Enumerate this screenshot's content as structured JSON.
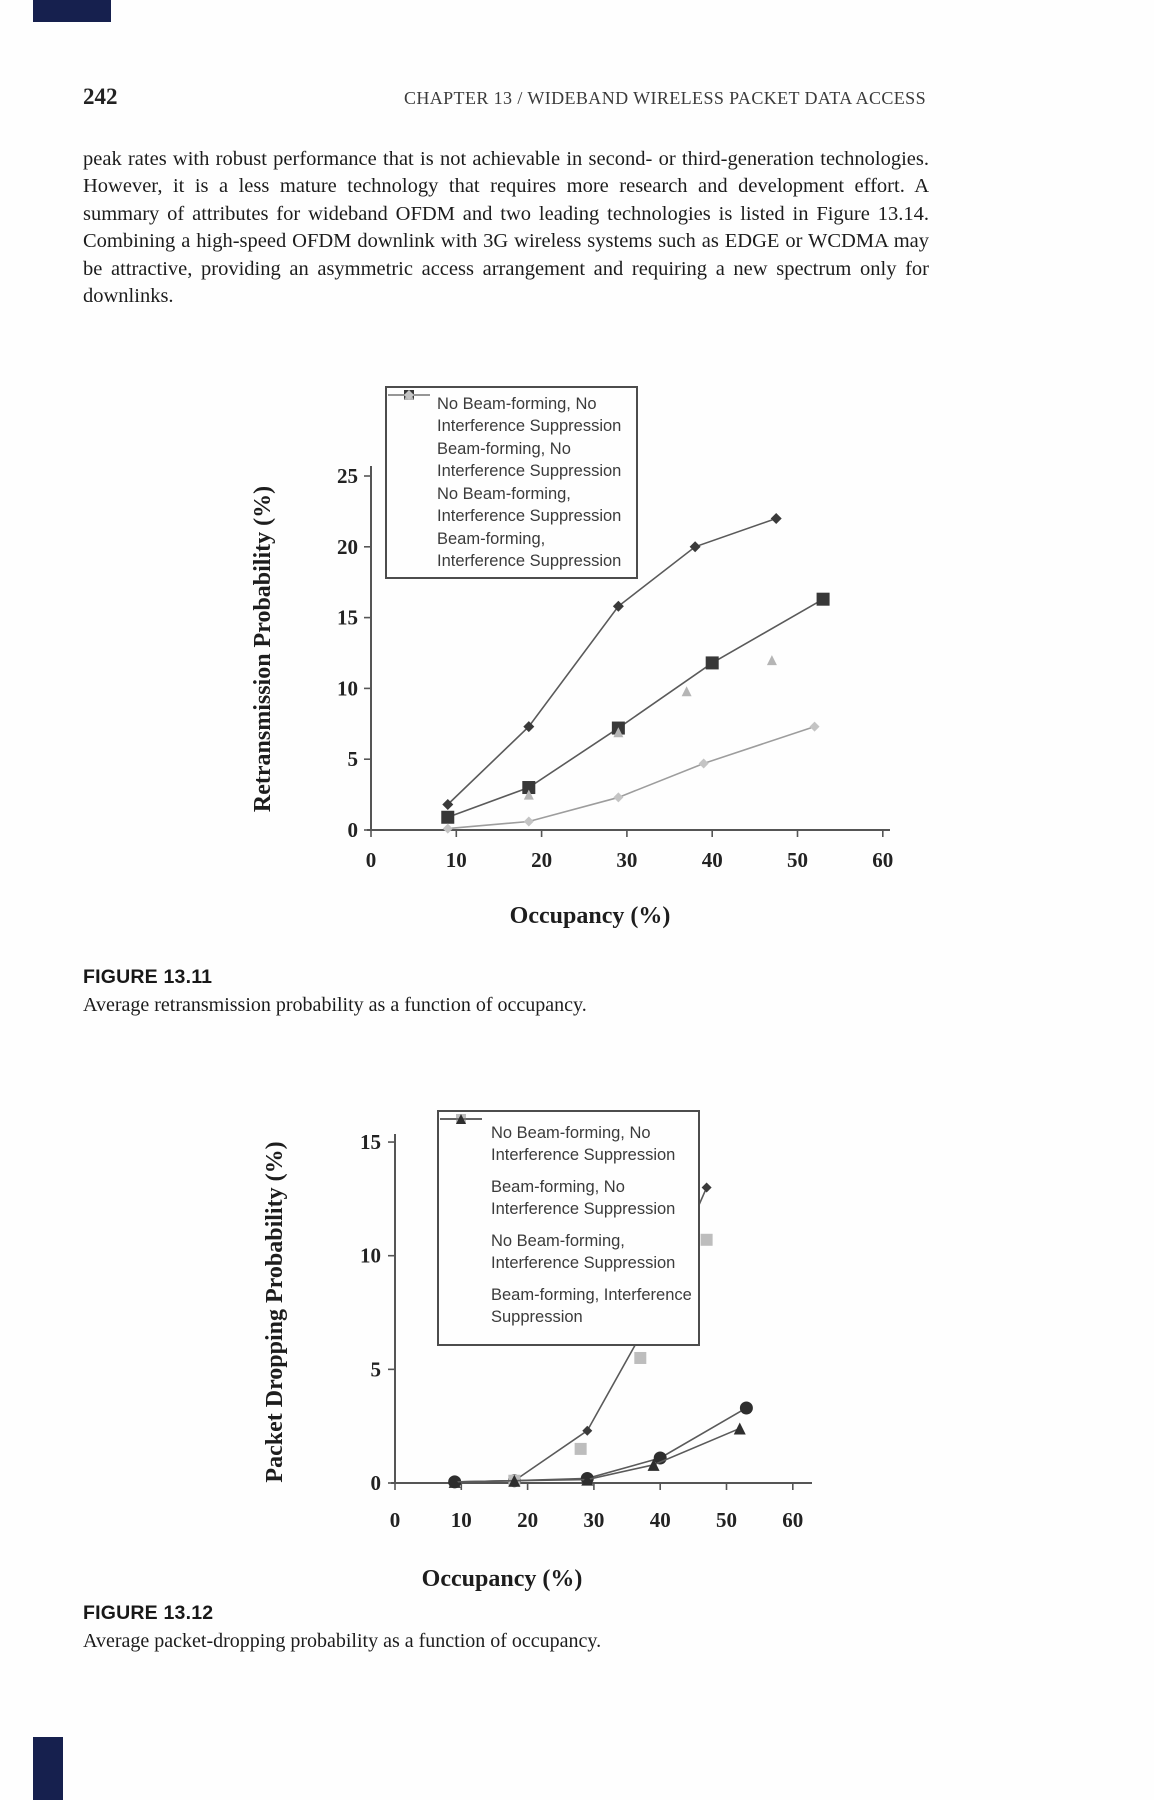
{
  "page": {
    "number": "242",
    "running_head": "CHAPTER 13 / WIDEBAND WIRELESS PACKET DATA ACCESS",
    "paragraph": "peak rates with robust performance that is not achievable in second- or third-generation technologies. However, it is a less mature technology that requires more research and development effort. A summary of attributes for wideband OFDM and two leading technologies is listed in Figure 13.14. Combining a high-speed OFDM downlink with 3G wireless systems such as EDGE or WCDMA may be attractive, providing an asymmetric access arrangement and requiring a new spectrum only for downlinks."
  },
  "figure1": {
    "label": "FIGURE 13.11",
    "caption": "Average retransmission probability as a function of occupancy."
  },
  "figure2": {
    "label": "FIGURE 13.12",
    "caption": "Average packet-dropping probability as a function of occupancy."
  },
  "colors": {
    "ink": "#1d1d1d",
    "chart_line": "#5a5a5a",
    "dark_marker": "#383838",
    "light_marker": "#bfbfbf",
    "legend_border": "#4c4c4c",
    "scan_artifact": "#16204e"
  },
  "chart_data": [
    {
      "type": "line",
      "title": "",
      "xlabel": "Occupancy (%)",
      "ylabel": "Retransmission Probability (%)",
      "xlim": [
        0,
        60
      ],
      "ylim": [
        0,
        25
      ],
      "xticks": [
        0,
        10,
        20,
        30,
        40,
        50,
        60
      ],
      "yticks": [
        0,
        5,
        10,
        15,
        20,
        25
      ],
      "grid": false,
      "legend_position": "top-left-inside",
      "series": [
        {
          "name": "No Beam-forming, No Interference Suppression",
          "marker": "diamond",
          "marker_color": "#3a3a3a",
          "line": true,
          "line_color": "#5a5a5a",
          "x": [
            9,
            18.5,
            29,
            38,
            47.5
          ],
          "y": [
            1.8,
            7.3,
            15.8,
            20.0,
            22.0
          ]
        },
        {
          "name": "Beam-forming, No Interference Suppression",
          "marker": "square",
          "marker_color": "#383838",
          "line": true,
          "line_color": "#5a5a5a",
          "x": [
            9,
            18.5,
            29,
            40,
            53
          ],
          "y": [
            0.9,
            3.0,
            7.2,
            11.8,
            16.3
          ]
        },
        {
          "name": "No Beam-forming, Interference Suppression",
          "marker": "triangle",
          "marker_color": "#b5b5b5",
          "line": false,
          "line_color": "#b5b5b5",
          "x": [
            18.5,
            29,
            37,
            47
          ],
          "y": [
            2.5,
            6.9,
            9.8,
            12.0
          ]
        },
        {
          "name": "Beam-forming, Interference Suppression",
          "marker": "diamond",
          "marker_color": "#c4c4c4",
          "line": true,
          "line_color": "#9d9d9d",
          "x": [
            9,
            18.5,
            29,
            39,
            52
          ],
          "y": [
            0.1,
            0.6,
            2.3,
            4.7,
            7.3
          ]
        }
      ]
    },
    {
      "type": "line",
      "title": "",
      "xlabel": "Occupancy (%)",
      "ylabel": "Packet Dropping Probability (%)",
      "xlim": [
        0,
        60
      ],
      "ylim": [
        0,
        15
      ],
      "xticks": [
        0,
        10,
        20,
        30,
        40,
        50,
        60
      ],
      "yticks": [
        0,
        5,
        10,
        15
      ],
      "grid": false,
      "legend_position": "top-left-inside",
      "series": [
        {
          "name": "No Beam-forming, No Interference Suppression",
          "marker": "diamond",
          "marker_color": "#3a3a3a",
          "line": true,
          "line_color": "#5a5a5a",
          "x": [
            9,
            18,
            29,
            38,
            47
          ],
          "y": [
            0.05,
            0.1,
            2.3,
            7.0,
            13.0
          ]
        },
        {
          "name": "Beam-forming, No Interference Suppression",
          "marker": "circle",
          "marker_color": "#2e2e2e",
          "line": true,
          "line_color": "#5a5a5a",
          "x": [
            9,
            18,
            29,
            40,
            53
          ],
          "y": [
            0.05,
            0.1,
            0.2,
            1.1,
            3.3
          ]
        },
        {
          "name": "No Beam-forming, Interference Suppression",
          "marker": "square",
          "marker_color": "#bdbdbd",
          "line": false,
          "line_color": "#bdbdbd",
          "x": [
            18,
            28,
            37,
            47
          ],
          "y": [
            0.1,
            1.5,
            5.5,
            10.7
          ]
        },
        {
          "name": "Beam-forming, Interference Suppression",
          "marker": "triangle",
          "marker_color": "#2e2e2e",
          "line": true,
          "line_color": "#5a5a5a",
          "x": [
            9,
            18,
            29,
            39,
            52
          ],
          "y": [
            0.05,
            0.1,
            0.15,
            0.8,
            2.4
          ]
        }
      ]
    }
  ]
}
